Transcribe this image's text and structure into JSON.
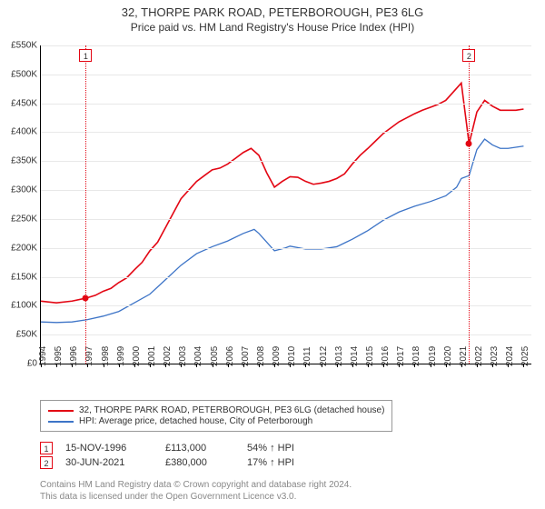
{
  "chart": {
    "title_line1": "32, THORPE PARK ROAD, PETERBOROUGH, PE3 6LG",
    "title_line2": "Price paid vs. HM Land Registry's House Price Index (HPI)",
    "type": "line",
    "background_color": "#ffffff",
    "grid_color": "#e8e8e8",
    "axis_color": "#000000",
    "text_color": "#333333",
    "title_fontsize": 13,
    "subtitle_fontsize": 12,
    "tick_fontsize": 10,
    "x": {
      "min": 1994,
      "max": 2025.5,
      "ticks": [
        1994,
        1995,
        1996,
        1997,
        1998,
        1999,
        2000,
        2001,
        2002,
        2003,
        2004,
        2005,
        2006,
        2007,
        2008,
        2009,
        2010,
        2011,
        2012,
        2013,
        2014,
        2015,
        2016,
        2017,
        2018,
        2019,
        2020,
        2021,
        2022,
        2023,
        2024,
        2025
      ]
    },
    "y": {
      "min": 0,
      "max": 550000,
      "ticks": [
        0,
        50000,
        100000,
        150000,
        200000,
        250000,
        300000,
        350000,
        400000,
        450000,
        500000,
        550000
      ],
      "tick_labels": [
        "£0",
        "£50K",
        "£100K",
        "£150K",
        "£200K",
        "£250K",
        "£300K",
        "£350K",
        "£400K",
        "£450K",
        "£500K",
        "£550K"
      ]
    },
    "series": [
      {
        "name": "32, THORPE PARK ROAD, PETERBOROUGH, PE3 6LG (detached house)",
        "color": "#e30613",
        "line_width": 1.6,
        "data": [
          [
            1994,
            108000
          ],
          [
            1995,
            105000
          ],
          [
            1996,
            108000
          ],
          [
            1996.88,
            113000
          ],
          [
            1997.5,
            118000
          ],
          [
            1998,
            125000
          ],
          [
            1998.5,
            130000
          ],
          [
            1999,
            140000
          ],
          [
            1999.5,
            148000
          ],
          [
            2000,
            162000
          ],
          [
            2000.5,
            175000
          ],
          [
            2001,
            195000
          ],
          [
            2001.5,
            210000
          ],
          [
            2002,
            235000
          ],
          [
            2002.5,
            260000
          ],
          [
            2003,
            285000
          ],
          [
            2003.5,
            300000
          ],
          [
            2004,
            315000
          ],
          [
            2004.5,
            325000
          ],
          [
            2005,
            335000
          ],
          [
            2005.5,
            338000
          ],
          [
            2006,
            345000
          ],
          [
            2006.5,
            355000
          ],
          [
            2007,
            365000
          ],
          [
            2007.5,
            372000
          ],
          [
            2008,
            360000
          ],
          [
            2008.5,
            330000
          ],
          [
            2009,
            305000
          ],
          [
            2009.5,
            315000
          ],
          [
            2010,
            323000
          ],
          [
            2010.5,
            322000
          ],
          [
            2011,
            315000
          ],
          [
            2011.5,
            310000
          ],
          [
            2012,
            312000
          ],
          [
            2012.5,
            315000
          ],
          [
            2013,
            320000
          ],
          [
            2013.5,
            328000
          ],
          [
            2014,
            345000
          ],
          [
            2014.5,
            360000
          ],
          [
            2015,
            372000
          ],
          [
            2015.5,
            385000
          ],
          [
            2016,
            398000
          ],
          [
            2016.5,
            408000
          ],
          [
            2017,
            418000
          ],
          [
            2017.5,
            425000
          ],
          [
            2018,
            432000
          ],
          [
            2018.5,
            438000
          ],
          [
            2019,
            443000
          ],
          [
            2019.5,
            448000
          ],
          [
            2020,
            455000
          ],
          [
            2020.5,
            470000
          ],
          [
            2021,
            485000
          ],
          [
            2021.5,
            380000
          ],
          [
            2022,
            435000
          ],
          [
            2022.5,
            455000
          ],
          [
            2023,
            445000
          ],
          [
            2023.5,
            438000
          ],
          [
            2024,
            438000
          ],
          [
            2024.5,
            438000
          ],
          [
            2025,
            440000
          ]
        ]
      },
      {
        "name": "HPI: Average price, detached house, City of Peterborough",
        "color": "#3d74c7",
        "line_width": 1.3,
        "data": [
          [
            1994,
            72000
          ],
          [
            1995,
            71000
          ],
          [
            1996,
            72000
          ],
          [
            1997,
            76000
          ],
          [
            1998,
            82000
          ],
          [
            1999,
            90000
          ],
          [
            2000,
            105000
          ],
          [
            2001,
            120000
          ],
          [
            2002,
            145000
          ],
          [
            2003,
            170000
          ],
          [
            2004,
            190000
          ],
          [
            2005,
            202000
          ],
          [
            2006,
            212000
          ],
          [
            2007,
            225000
          ],
          [
            2007.7,
            232000
          ],
          [
            2008,
            225000
          ],
          [
            2008.5,
            210000
          ],
          [
            2009,
            195000
          ],
          [
            2009.7,
            200000
          ],
          [
            2010,
            203000
          ],
          [
            2011,
            198000
          ],
          [
            2012,
            198000
          ],
          [
            2013,
            202000
          ],
          [
            2014,
            215000
          ],
          [
            2015,
            230000
          ],
          [
            2016,
            248000
          ],
          [
            2017,
            262000
          ],
          [
            2018,
            272000
          ],
          [
            2019,
            280000
          ],
          [
            2020,
            290000
          ],
          [
            2020.7,
            305000
          ],
          [
            2021,
            320000
          ],
          [
            2021.5,
            325000
          ],
          [
            2022,
            370000
          ],
          [
            2022.5,
            388000
          ],
          [
            2023,
            378000
          ],
          [
            2023.5,
            372000
          ],
          [
            2024,
            372000
          ],
          [
            2024.5,
            374000
          ],
          [
            2025,
            376000
          ]
        ]
      }
    ],
    "sale_points": [
      {
        "n": "1",
        "year": 1996.88,
        "price": 113000,
        "color": "#e30613"
      },
      {
        "n": "2",
        "year": 2021.5,
        "price": 380000,
        "color": "#e30613"
      }
    ]
  },
  "legend_fontsize": 10,
  "sales": [
    {
      "n": "1",
      "date": "15-NOV-1996",
      "price": "£113,000",
      "pct": "54% ↑ HPI",
      "color": "#e30613"
    },
    {
      "n": "2",
      "date": "30-JUN-2021",
      "price": "£380,000",
      "pct": "17% ↑ HPI",
      "color": "#e30613"
    }
  ],
  "footer": {
    "line1": "Contains HM Land Registry data © Crown copyright and database right 2024.",
    "line2": "This data is licensed under the Open Government Licence v3.0."
  }
}
